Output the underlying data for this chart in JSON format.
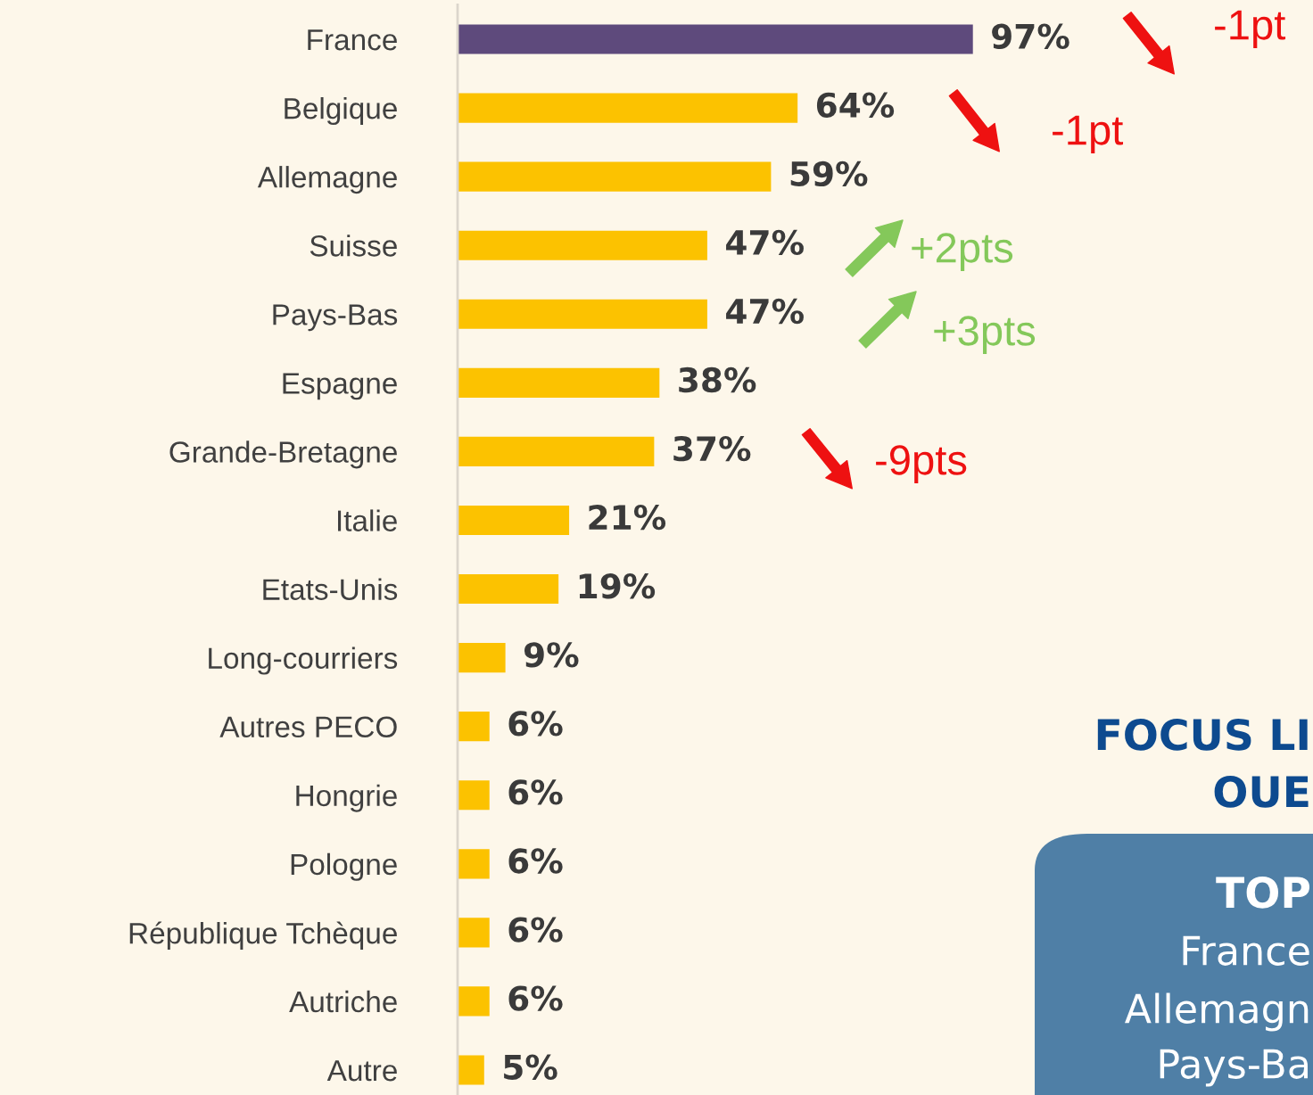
{
  "chart_data": {
    "type": "bar",
    "orientation": "horizontal",
    "categories": [
      "France",
      "Belgique",
      "Allemagne",
      "Suisse",
      "Pays-Bas",
      "Espagne",
      "Grande-Bretagne",
      "Italie",
      "Etats-Unis",
      "Long-courriers",
      "Autres PECO",
      "Hongrie",
      "Pologne",
      "République Tchèque",
      "Autriche",
      "Autre"
    ],
    "values": [
      97,
      64,
      59,
      47,
      47,
      38,
      37,
      21,
      19,
      9,
      6,
      6,
      6,
      6,
      6,
      5
    ],
    "colors": [
      "#5e4a7c",
      "#fcc200",
      "#fcc200",
      "#fcc200",
      "#fcc200",
      "#fcc200",
      "#fcc200",
      "#fcc200",
      "#fcc200",
      "#fcc200",
      "#fcc200",
      "#fcc200",
      "#fcc200",
      "#fcc200",
      "#fcc200",
      "#fcc200"
    ],
    "value_labels": [
      "97%",
      "64%",
      "59%",
      "47%",
      "47%",
      "38%",
      "37%",
      "21%",
      "19%",
      "9%",
      "6%",
      "6%",
      "6%",
      "6%",
      "6%",
      "5%"
    ],
    "annotations": [
      "-1pt",
      "-1pt",
      "+2pts",
      "+3pts",
      "-9pts",
      "FOCUS LI",
      "OUE",
      "TOP",
      "France",
      "Allemagn",
      "Pays-Ba"
    ],
    "grid": false,
    "legend": false
  }
}
